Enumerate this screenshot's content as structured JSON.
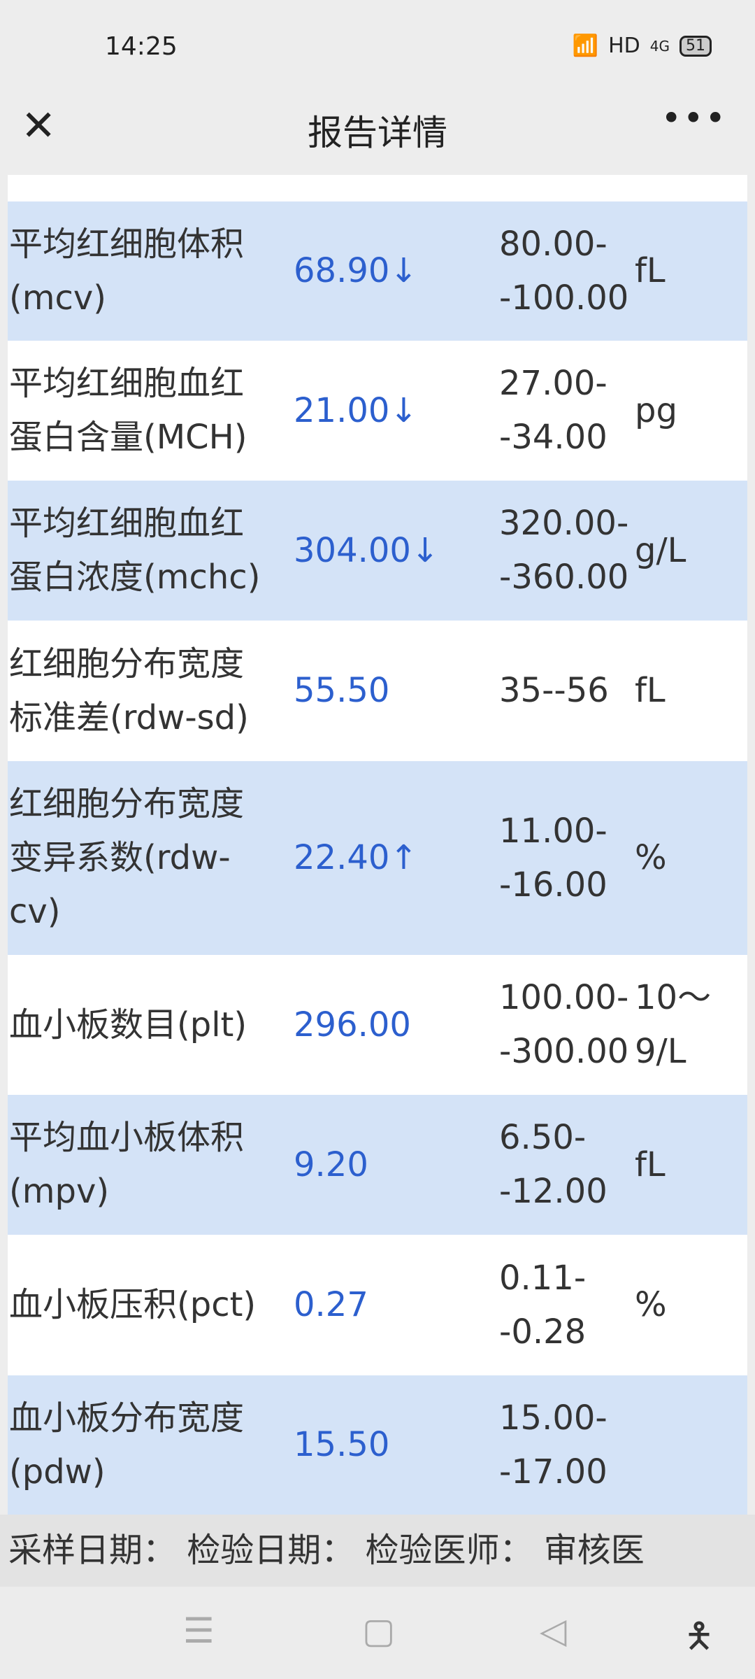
{
  "status": {
    "time": "14:25",
    "network": "HD",
    "signal": "4G",
    "battery": "51"
  },
  "header": {
    "title": "报告详情",
    "close_icon": "close-icon",
    "more_icon": "more-icon"
  },
  "rows": [
    {
      "name": [
        "平均红细胞体积",
        "(mcv)"
      ],
      "value": "68.90↓",
      "range": [
        "80.00-",
        "-100.00"
      ],
      "unit": [
        "fL"
      ]
    },
    {
      "name": [
        "平均红细胞血红",
        "蛋白含量(MCH)"
      ],
      "value": "21.00↓",
      "range": [
        "27.00-",
        "-34.00"
      ],
      "unit": [
        "pg"
      ]
    },
    {
      "name": [
        "平均红细胞血红",
        "蛋白浓度(mchc)"
      ],
      "value": "304.00↓",
      "range": [
        "320.00-",
        "-360.00"
      ],
      "unit": [
        "g/L"
      ]
    },
    {
      "name": [
        "红细胞分布宽度",
        "标准差(rdw-sd)"
      ],
      "value": "55.50",
      "range": [
        "35--56"
      ],
      "unit": [
        "fL"
      ]
    },
    {
      "name": [
        "红细胞分布宽度",
        "变异系数(rdw-",
        "cv)"
      ],
      "value": "22.40↑",
      "range": [
        "11.00-",
        "-16.00"
      ],
      "unit": [
        "%"
      ]
    },
    {
      "name": [
        "血小板数目(plt)"
      ],
      "value": "296.00",
      "range": [
        "100.00-",
        "-300.00"
      ],
      "unit": [
        "10～",
        "9/L"
      ]
    },
    {
      "name": [
        "平均血小板体积",
        "(mpv)"
      ],
      "value": "9.20",
      "range": [
        "6.50-",
        "-12.00"
      ],
      "unit": [
        "fL"
      ]
    },
    {
      "name": [
        "血小板压积(pct)"
      ],
      "value": "0.27",
      "range": [
        "0.11-",
        "-0.28"
      ],
      "unit": [
        "%"
      ]
    },
    {
      "name": [
        "血小板分布宽度",
        "(pdw)"
      ],
      "value": "15.50",
      "range": [
        "15.00-",
        "-17.00"
      ],
      "unit": []
    }
  ],
  "footer": "采样日期： 检验日期： 检验医师： 审核医",
  "colors": {
    "value": "#2c5fce",
    "alt_row": "#d4e3f7"
  }
}
